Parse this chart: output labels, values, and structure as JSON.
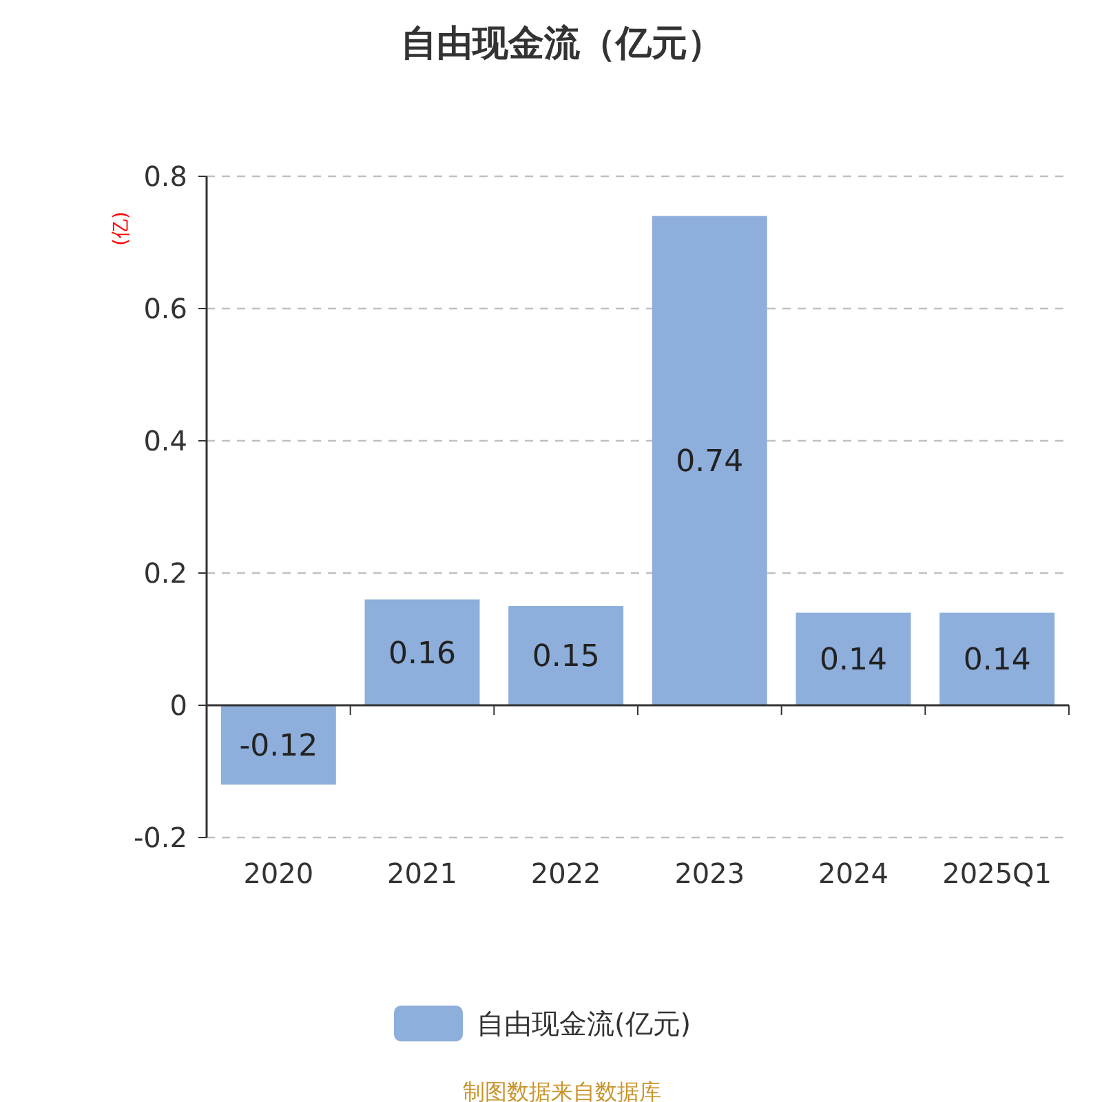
{
  "chart_data": {
    "type": "bar",
    "title": "自由现金流（亿元）",
    "ylabel": "(亿)",
    "categories": [
      "2020",
      "2021",
      "2022",
      "2023",
      "2024",
      "2025Q1"
    ],
    "series": [
      {
        "name": "自由现金流(亿元)",
        "color": "#8eaedb",
        "values": [
          -0.12,
          0.16,
          0.15,
          0.74,
          0.14,
          0.14
        ]
      }
    ],
    "ylim": [
      -0.2,
      0.8
    ],
    "yticks": [
      -0.2,
      0,
      0.2,
      0.4,
      0.6,
      0.8
    ],
    "grid": "y",
    "legend": "bottom",
    "data_labels": true,
    "annotations": [
      "制图数据来自数据库"
    ]
  }
}
